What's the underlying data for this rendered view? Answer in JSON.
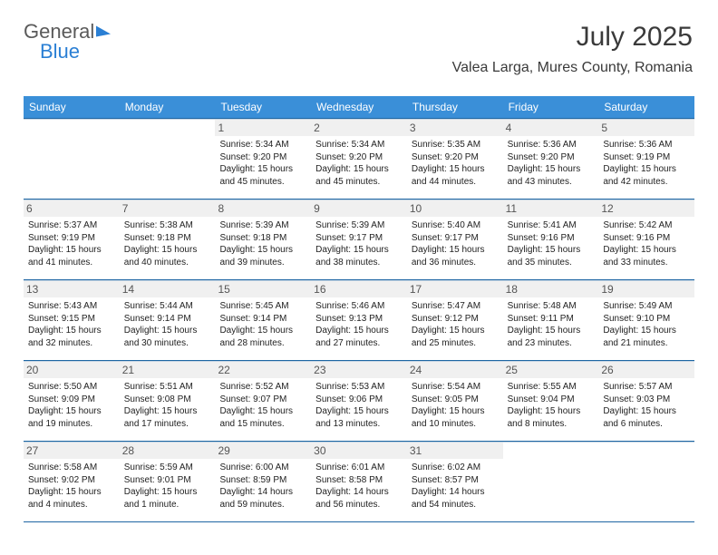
{
  "brand": {
    "part1": "General",
    "part2": "Blue"
  },
  "title": "July 2025",
  "location": "Valea Larga, Mures County, Romania",
  "styling": {
    "header_bg": "#3a8fd8",
    "header_text": "#ffffff",
    "rule_color": "#1e66a3",
    "daynum_bg": "#f0f0f0",
    "body_fontsize": 10,
    "head_fontsize": 12,
    "title_fontsize": 30,
    "location_fontsize": 16
  },
  "day_names": [
    "Sunday",
    "Monday",
    "Tuesday",
    "Wednesday",
    "Thursday",
    "Friday",
    "Saturday"
  ],
  "weeks": [
    [
      {
        "n": "",
        "sr": "",
        "ss": "",
        "dl": "",
        "empty": true
      },
      {
        "n": "",
        "sr": "",
        "ss": "",
        "dl": "",
        "empty": true
      },
      {
        "n": "1",
        "sr": "Sunrise: 5:34 AM",
        "ss": "Sunset: 9:20 PM",
        "dl": "Daylight: 15 hours and 45 minutes."
      },
      {
        "n": "2",
        "sr": "Sunrise: 5:34 AM",
        "ss": "Sunset: 9:20 PM",
        "dl": "Daylight: 15 hours and 45 minutes."
      },
      {
        "n": "3",
        "sr": "Sunrise: 5:35 AM",
        "ss": "Sunset: 9:20 PM",
        "dl": "Daylight: 15 hours and 44 minutes."
      },
      {
        "n": "4",
        "sr": "Sunrise: 5:36 AM",
        "ss": "Sunset: 9:20 PM",
        "dl": "Daylight: 15 hours and 43 minutes."
      },
      {
        "n": "5",
        "sr": "Sunrise: 5:36 AM",
        "ss": "Sunset: 9:19 PM",
        "dl": "Daylight: 15 hours and 42 minutes."
      }
    ],
    [
      {
        "n": "6",
        "sr": "Sunrise: 5:37 AM",
        "ss": "Sunset: 9:19 PM",
        "dl": "Daylight: 15 hours and 41 minutes."
      },
      {
        "n": "7",
        "sr": "Sunrise: 5:38 AM",
        "ss": "Sunset: 9:18 PM",
        "dl": "Daylight: 15 hours and 40 minutes."
      },
      {
        "n": "8",
        "sr": "Sunrise: 5:39 AM",
        "ss": "Sunset: 9:18 PM",
        "dl": "Daylight: 15 hours and 39 minutes."
      },
      {
        "n": "9",
        "sr": "Sunrise: 5:39 AM",
        "ss": "Sunset: 9:17 PM",
        "dl": "Daylight: 15 hours and 38 minutes."
      },
      {
        "n": "10",
        "sr": "Sunrise: 5:40 AM",
        "ss": "Sunset: 9:17 PM",
        "dl": "Daylight: 15 hours and 36 minutes."
      },
      {
        "n": "11",
        "sr": "Sunrise: 5:41 AM",
        "ss": "Sunset: 9:16 PM",
        "dl": "Daylight: 15 hours and 35 minutes."
      },
      {
        "n": "12",
        "sr": "Sunrise: 5:42 AM",
        "ss": "Sunset: 9:16 PM",
        "dl": "Daylight: 15 hours and 33 minutes."
      }
    ],
    [
      {
        "n": "13",
        "sr": "Sunrise: 5:43 AM",
        "ss": "Sunset: 9:15 PM",
        "dl": "Daylight: 15 hours and 32 minutes."
      },
      {
        "n": "14",
        "sr": "Sunrise: 5:44 AM",
        "ss": "Sunset: 9:14 PM",
        "dl": "Daylight: 15 hours and 30 minutes."
      },
      {
        "n": "15",
        "sr": "Sunrise: 5:45 AM",
        "ss": "Sunset: 9:14 PM",
        "dl": "Daylight: 15 hours and 28 minutes."
      },
      {
        "n": "16",
        "sr": "Sunrise: 5:46 AM",
        "ss": "Sunset: 9:13 PM",
        "dl": "Daylight: 15 hours and 27 minutes."
      },
      {
        "n": "17",
        "sr": "Sunrise: 5:47 AM",
        "ss": "Sunset: 9:12 PM",
        "dl": "Daylight: 15 hours and 25 minutes."
      },
      {
        "n": "18",
        "sr": "Sunrise: 5:48 AM",
        "ss": "Sunset: 9:11 PM",
        "dl": "Daylight: 15 hours and 23 minutes."
      },
      {
        "n": "19",
        "sr": "Sunrise: 5:49 AM",
        "ss": "Sunset: 9:10 PM",
        "dl": "Daylight: 15 hours and 21 minutes."
      }
    ],
    [
      {
        "n": "20",
        "sr": "Sunrise: 5:50 AM",
        "ss": "Sunset: 9:09 PM",
        "dl": "Daylight: 15 hours and 19 minutes."
      },
      {
        "n": "21",
        "sr": "Sunrise: 5:51 AM",
        "ss": "Sunset: 9:08 PM",
        "dl": "Daylight: 15 hours and 17 minutes."
      },
      {
        "n": "22",
        "sr": "Sunrise: 5:52 AM",
        "ss": "Sunset: 9:07 PM",
        "dl": "Daylight: 15 hours and 15 minutes."
      },
      {
        "n": "23",
        "sr": "Sunrise: 5:53 AM",
        "ss": "Sunset: 9:06 PM",
        "dl": "Daylight: 15 hours and 13 minutes."
      },
      {
        "n": "24",
        "sr": "Sunrise: 5:54 AM",
        "ss": "Sunset: 9:05 PM",
        "dl": "Daylight: 15 hours and 10 minutes."
      },
      {
        "n": "25",
        "sr": "Sunrise: 5:55 AM",
        "ss": "Sunset: 9:04 PM",
        "dl": "Daylight: 15 hours and 8 minutes."
      },
      {
        "n": "26",
        "sr": "Sunrise: 5:57 AM",
        "ss": "Sunset: 9:03 PM",
        "dl": "Daylight: 15 hours and 6 minutes."
      }
    ],
    [
      {
        "n": "27",
        "sr": "Sunrise: 5:58 AM",
        "ss": "Sunset: 9:02 PM",
        "dl": "Daylight: 15 hours and 4 minutes."
      },
      {
        "n": "28",
        "sr": "Sunrise: 5:59 AM",
        "ss": "Sunset: 9:01 PM",
        "dl": "Daylight: 15 hours and 1 minute."
      },
      {
        "n": "29",
        "sr": "Sunrise: 6:00 AM",
        "ss": "Sunset: 8:59 PM",
        "dl": "Daylight: 14 hours and 59 minutes."
      },
      {
        "n": "30",
        "sr": "Sunrise: 6:01 AM",
        "ss": "Sunset: 8:58 PM",
        "dl": "Daylight: 14 hours and 56 minutes."
      },
      {
        "n": "31",
        "sr": "Sunrise: 6:02 AM",
        "ss": "Sunset: 8:57 PM",
        "dl": "Daylight: 14 hours and 54 minutes."
      },
      {
        "n": "",
        "sr": "",
        "ss": "",
        "dl": "",
        "empty": true
      },
      {
        "n": "",
        "sr": "",
        "ss": "",
        "dl": "",
        "empty": true
      }
    ]
  ]
}
